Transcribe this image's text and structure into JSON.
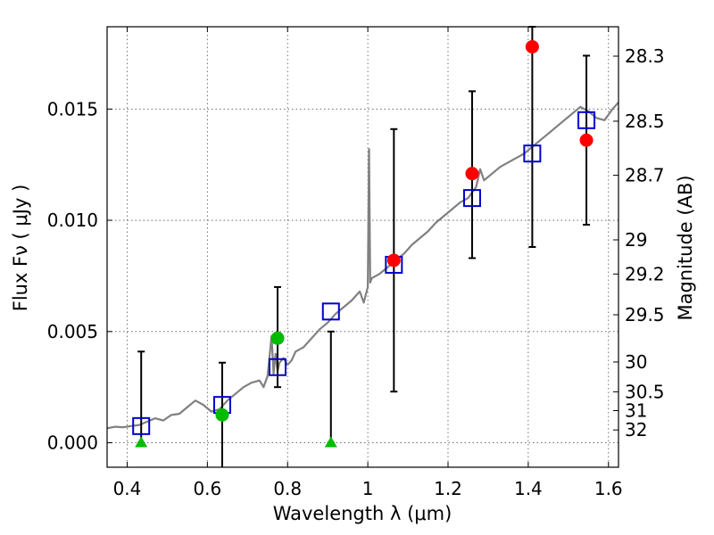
{
  "chart_data": {
    "type": "scatter",
    "xlabel": "Wavelength  λ (μm)",
    "ylabel": "Flux  Fν  ( μJy )",
    "y2label": "Magnitude (AB)",
    "xlim": [
      0.35,
      1.625
    ],
    "ylim": [
      -0.0011,
      0.0187
    ],
    "x_ticks": [
      0.4,
      0.6,
      0.8,
      1.0,
      1.2,
      1.4,
      1.6
    ],
    "x_tick_labels": [
      "0.4",
      "0.6",
      "0.8",
      "1",
      "1.2",
      "1.4",
      "1.6"
    ],
    "y_ticks": [
      0.0,
      0.005,
      0.01,
      0.015
    ],
    "y_tick_labels": [
      "0.000",
      "0.005",
      "0.010",
      "0.015"
    ],
    "mag_ticks": [
      "28.3",
      "28.5",
      "28.7",
      "29",
      "29.2",
      "29.5",
      "30",
      "30.5",
      "31",
      "32"
    ],
    "grid": true,
    "colors": {
      "spectrum": "#808080",
      "model_squares": "#0000cc",
      "detections_red": "#ff0000",
      "detections_green": "#00bb00",
      "upper_limits": "#00bb00",
      "errorbars": "#000000"
    },
    "spectrum": [
      [
        0.35,
        0.00065
      ],
      [
        0.37,
        0.00072
      ],
      [
        0.39,
        0.0007
      ],
      [
        0.41,
        0.00075
      ],
      [
        0.43,
        0.0008
      ],
      [
        0.45,
        0.00095
      ],
      [
        0.47,
        0.0011
      ],
      [
        0.49,
        0.001
      ],
      [
        0.51,
        0.00125
      ],
      [
        0.53,
        0.0013
      ],
      [
        0.55,
        0.0016
      ],
      [
        0.57,
        0.0019
      ],
      [
        0.59,
        0.0017
      ],
      [
        0.61,
        0.0014
      ],
      [
        0.63,
        0.0015
      ],
      [
        0.65,
        0.0019
      ],
      [
        0.67,
        0.0022
      ],
      [
        0.69,
        0.0025
      ],
      [
        0.71,
        0.0027
      ],
      [
        0.73,
        0.0028
      ],
      [
        0.74,
        0.0025
      ],
      [
        0.75,
        0.003
      ],
      [
        0.76,
        0.0048
      ],
      [
        0.765,
        0.0031
      ],
      [
        0.77,
        0.004
      ],
      [
        0.775,
        0.0032
      ],
      [
        0.78,
        0.0036
      ],
      [
        0.79,
        0.0038
      ],
      [
        0.8,
        0.0035
      ],
      [
        0.81,
        0.0037
      ],
      [
        0.82,
        0.0041
      ],
      [
        0.84,
        0.0043
      ],
      [
        0.86,
        0.0047
      ],
      [
        0.88,
        0.0051
      ],
      [
        0.9,
        0.0054
      ],
      [
        0.92,
        0.0058
      ],
      [
        0.94,
        0.0061
      ],
      [
        0.96,
        0.0064
      ],
      [
        0.98,
        0.0068
      ],
      [
        0.99,
        0.0063
      ],
      [
        1.0,
        0.007
      ],
      [
        1.003,
        0.0132
      ],
      [
        1.006,
        0.0072
      ],
      [
        1.01,
        0.0074
      ],
      [
        1.03,
        0.0076
      ],
      [
        1.05,
        0.0079
      ],
      [
        1.07,
        0.0082
      ],
      [
        1.09,
        0.0085
      ],
      [
        1.11,
        0.0089
      ],
      [
        1.13,
        0.0092
      ],
      [
        1.15,
        0.0095
      ],
      [
        1.17,
        0.0099
      ],
      [
        1.19,
        0.0102
      ],
      [
        1.21,
        0.0105
      ],
      [
        1.23,
        0.0108
      ],
      [
        1.25,
        0.011
      ],
      [
        1.27,
        0.0115
      ],
      [
        1.28,
        0.0123
      ],
      [
        1.29,
        0.0118
      ],
      [
        1.31,
        0.0121
      ],
      [
        1.33,
        0.0124
      ],
      [
        1.35,
        0.0126
      ],
      [
        1.37,
        0.0128
      ],
      [
        1.39,
        0.013
      ],
      [
        1.41,
        0.0133
      ],
      [
        1.43,
        0.0136
      ],
      [
        1.45,
        0.0139
      ],
      [
        1.47,
        0.0142
      ],
      [
        1.49,
        0.0145
      ],
      [
        1.51,
        0.0148
      ],
      [
        1.53,
        0.0151
      ],
      [
        1.55,
        0.0149
      ],
      [
        1.57,
        0.0146
      ],
      [
        1.59,
        0.0145
      ],
      [
        1.61,
        0.015
      ],
      [
        1.625,
        0.0153
      ]
    ],
    "model_squares": [
      {
        "x": 0.435,
        "y": 0.00075
      },
      {
        "x": 0.637,
        "y": 0.0017
      },
      {
        "x": 0.775,
        "y": 0.0034
      },
      {
        "x": 0.908,
        "y": 0.0059
      },
      {
        "x": 1.065,
        "y": 0.008
      },
      {
        "x": 1.26,
        "y": 0.011
      },
      {
        "x": 1.41,
        "y": 0.013
      },
      {
        "x": 1.545,
        "y": 0.0145
      }
    ],
    "detections": [
      {
        "x": 0.637,
        "y": 0.00125,
        "err_low": -0.0012,
        "err_high": 0.0036,
        "color": "green"
      },
      {
        "x": 0.775,
        "y": 0.0047,
        "err_low": 0.0025,
        "err_high": 0.007,
        "color": "green"
      },
      {
        "x": 1.065,
        "y": 0.0082,
        "err_low": 0.0023,
        "err_high": 0.0141,
        "color": "red"
      },
      {
        "x": 1.26,
        "y": 0.0121,
        "err_low": 0.0083,
        "err_high": 0.0158,
        "color": "red"
      },
      {
        "x": 1.41,
        "y": 0.0178,
        "err_low": 0.0088,
        "err_high": 0.0187,
        "color": "red"
      },
      {
        "x": 1.545,
        "y": 0.0136,
        "err_low": 0.0098,
        "err_high": 0.0174,
        "color": "red"
      }
    ],
    "upper_limits": [
      {
        "x": 0.435,
        "y": 0.0,
        "err_high": 0.0041
      },
      {
        "x": 0.908,
        "y": 0.0,
        "err_high": 0.005
      }
    ]
  }
}
